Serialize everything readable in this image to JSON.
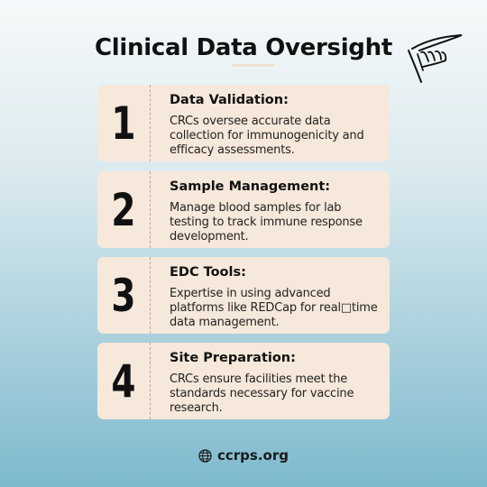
{
  "title": "Clinical Data Oversight",
  "cards": [
    {
      "number": "1",
      "heading": "Data Validation:",
      "text": "CRCs oversee accurate data collection for immunogenicity and efficacy assessments."
    },
    {
      "number": "2",
      "heading": "Sample Management:",
      "text": "Manage blood samples for lab testing to track immune response development."
    },
    {
      "number": "3",
      "heading": "EDC Tools:",
      "text": "Expertise in using advanced platforms like REDCap for real□time data management."
    },
    {
      "number": "4",
      "heading": "Site Preparation:",
      "text": "CRCs ensure facilities meet the standards necessary for vaccine research."
    }
  ],
  "footer": {
    "icon": "globe-icon",
    "site": "ccrps.org"
  },
  "decoration": {
    "icon": "hand-pen-icon"
  },
  "colors": {
    "card": "#f6e8da",
    "text": "#111111",
    "gradient_top": "#f6f9fa",
    "gradient_bottom": "#7eb9cd"
  }
}
